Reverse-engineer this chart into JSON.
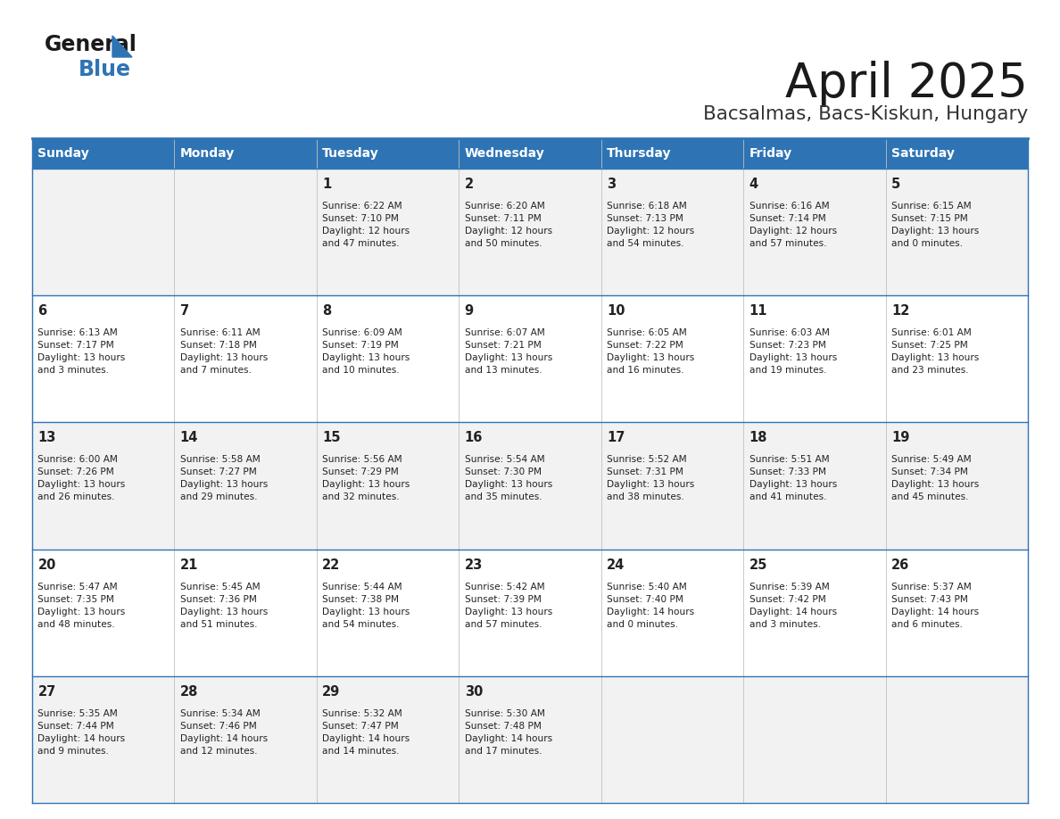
{
  "title": "April 2025",
  "subtitle": "Bacsalmas, Bacs-Kiskun, Hungary",
  "header_bg_color": "#2E74B5",
  "header_text_color": "#FFFFFF",
  "row_bg_even": "#F2F2F2",
  "row_bg_odd": "#FFFFFF",
  "border_color": "#2E74B5",
  "title_color": "#1a1a1a",
  "subtitle_color": "#333333",
  "text_color": "#222222",
  "days_of_week": [
    "Sunday",
    "Monday",
    "Tuesday",
    "Wednesday",
    "Thursday",
    "Friday",
    "Saturday"
  ],
  "weeks": [
    [
      {
        "day": "",
        "info": ""
      },
      {
        "day": "",
        "info": ""
      },
      {
        "day": "1",
        "info": "Sunrise: 6:22 AM\nSunset: 7:10 PM\nDaylight: 12 hours\nand 47 minutes."
      },
      {
        "day": "2",
        "info": "Sunrise: 6:20 AM\nSunset: 7:11 PM\nDaylight: 12 hours\nand 50 minutes."
      },
      {
        "day": "3",
        "info": "Sunrise: 6:18 AM\nSunset: 7:13 PM\nDaylight: 12 hours\nand 54 minutes."
      },
      {
        "day": "4",
        "info": "Sunrise: 6:16 AM\nSunset: 7:14 PM\nDaylight: 12 hours\nand 57 minutes."
      },
      {
        "day": "5",
        "info": "Sunrise: 6:15 AM\nSunset: 7:15 PM\nDaylight: 13 hours\nand 0 minutes."
      }
    ],
    [
      {
        "day": "6",
        "info": "Sunrise: 6:13 AM\nSunset: 7:17 PM\nDaylight: 13 hours\nand 3 minutes."
      },
      {
        "day": "7",
        "info": "Sunrise: 6:11 AM\nSunset: 7:18 PM\nDaylight: 13 hours\nand 7 minutes."
      },
      {
        "day": "8",
        "info": "Sunrise: 6:09 AM\nSunset: 7:19 PM\nDaylight: 13 hours\nand 10 minutes."
      },
      {
        "day": "9",
        "info": "Sunrise: 6:07 AM\nSunset: 7:21 PM\nDaylight: 13 hours\nand 13 minutes."
      },
      {
        "day": "10",
        "info": "Sunrise: 6:05 AM\nSunset: 7:22 PM\nDaylight: 13 hours\nand 16 minutes."
      },
      {
        "day": "11",
        "info": "Sunrise: 6:03 AM\nSunset: 7:23 PM\nDaylight: 13 hours\nand 19 minutes."
      },
      {
        "day": "12",
        "info": "Sunrise: 6:01 AM\nSunset: 7:25 PM\nDaylight: 13 hours\nand 23 minutes."
      }
    ],
    [
      {
        "day": "13",
        "info": "Sunrise: 6:00 AM\nSunset: 7:26 PM\nDaylight: 13 hours\nand 26 minutes."
      },
      {
        "day": "14",
        "info": "Sunrise: 5:58 AM\nSunset: 7:27 PM\nDaylight: 13 hours\nand 29 minutes."
      },
      {
        "day": "15",
        "info": "Sunrise: 5:56 AM\nSunset: 7:29 PM\nDaylight: 13 hours\nand 32 minutes."
      },
      {
        "day": "16",
        "info": "Sunrise: 5:54 AM\nSunset: 7:30 PM\nDaylight: 13 hours\nand 35 minutes."
      },
      {
        "day": "17",
        "info": "Sunrise: 5:52 AM\nSunset: 7:31 PM\nDaylight: 13 hours\nand 38 minutes."
      },
      {
        "day": "18",
        "info": "Sunrise: 5:51 AM\nSunset: 7:33 PM\nDaylight: 13 hours\nand 41 minutes."
      },
      {
        "day": "19",
        "info": "Sunrise: 5:49 AM\nSunset: 7:34 PM\nDaylight: 13 hours\nand 45 minutes."
      }
    ],
    [
      {
        "day": "20",
        "info": "Sunrise: 5:47 AM\nSunset: 7:35 PM\nDaylight: 13 hours\nand 48 minutes."
      },
      {
        "day": "21",
        "info": "Sunrise: 5:45 AM\nSunset: 7:36 PM\nDaylight: 13 hours\nand 51 minutes."
      },
      {
        "day": "22",
        "info": "Sunrise: 5:44 AM\nSunset: 7:38 PM\nDaylight: 13 hours\nand 54 minutes."
      },
      {
        "day": "23",
        "info": "Sunrise: 5:42 AM\nSunset: 7:39 PM\nDaylight: 13 hours\nand 57 minutes."
      },
      {
        "day": "24",
        "info": "Sunrise: 5:40 AM\nSunset: 7:40 PM\nDaylight: 14 hours\nand 0 minutes."
      },
      {
        "day": "25",
        "info": "Sunrise: 5:39 AM\nSunset: 7:42 PM\nDaylight: 14 hours\nand 3 minutes."
      },
      {
        "day": "26",
        "info": "Sunrise: 5:37 AM\nSunset: 7:43 PM\nDaylight: 14 hours\nand 6 minutes."
      }
    ],
    [
      {
        "day": "27",
        "info": "Sunrise: 5:35 AM\nSunset: 7:44 PM\nDaylight: 14 hours\nand 9 minutes."
      },
      {
        "day": "28",
        "info": "Sunrise: 5:34 AM\nSunset: 7:46 PM\nDaylight: 14 hours\nand 12 minutes."
      },
      {
        "day": "29",
        "info": "Sunrise: 5:32 AM\nSunset: 7:47 PM\nDaylight: 14 hours\nand 14 minutes."
      },
      {
        "day": "30",
        "info": "Sunrise: 5:30 AM\nSunset: 7:48 PM\nDaylight: 14 hours\nand 17 minutes."
      },
      {
        "day": "",
        "info": ""
      },
      {
        "day": "",
        "info": ""
      },
      {
        "day": "",
        "info": ""
      }
    ]
  ]
}
